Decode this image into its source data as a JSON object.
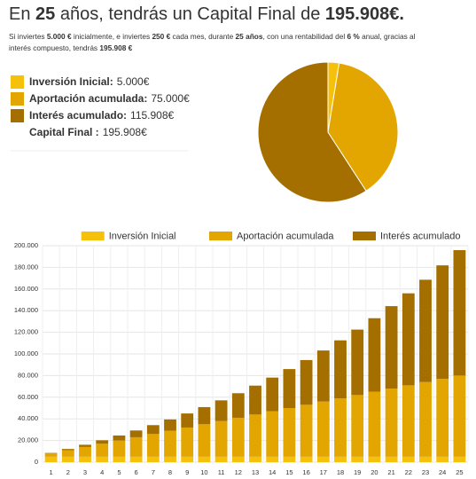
{
  "header": {
    "title_parts": [
      "En ",
      "25",
      " años, tendrás un Capital Final de ",
      "195.908€."
    ],
    "line1_parts": [
      "Si inviertes ",
      "5.000 €",
      " inicialmente, e inviertes ",
      "250 €",
      " cada mes, durante ",
      "25 años",
      ", con una rentabilidad del ",
      "6 %",
      " anual, gracias al"
    ],
    "line2_parts": [
      "interés compuesto, tendrás ",
      "195.908 €"
    ]
  },
  "summary": [
    {
      "label": "Inversión Inicial:",
      "value": "5.000€",
      "color": "#f5c10a"
    },
    {
      "label": "Aportación acumulada:",
      "value": "75.000€",
      "color": "#e3a600"
    },
    {
      "label": "Interés acumulado:",
      "value": "115.908€",
      "color": "#a56f00"
    },
    {
      "label": "Capital Final :",
      "value": "195.908€"
    }
  ],
  "chart_data": [
    {
      "type": "pie",
      "categories": [
        "Inversión Inicial",
        "Aportación acumulada",
        "Interés acumulado"
      ],
      "values": [
        5000,
        75000,
        115908
      ],
      "colors": [
        "#f5c10a",
        "#e3a600",
        "#a56f00"
      ]
    },
    {
      "type": "bar",
      "stacked": true,
      "legend": "top",
      "grid": true,
      "categories": [
        1,
        2,
        3,
        4,
        5,
        6,
        7,
        8,
        9,
        10,
        11,
        12,
        13,
        14,
        15,
        16,
        17,
        18,
        19,
        20,
        21,
        22,
        23,
        24,
        25
      ],
      "series": [
        {
          "name": "Inversión Inicial",
          "color": "#f5c10a",
          "values": [
            5000,
            5000,
            5000,
            5000,
            5000,
            5000,
            5000,
            5000,
            5000,
            5000,
            5000,
            5000,
            5000,
            5000,
            5000,
            5000,
            5000,
            5000,
            5000,
            5000,
            5000,
            5000,
            5000,
            5000,
            5000
          ]
        },
        {
          "name": "Aportación acumulada",
          "color": "#e3a600",
          "values": [
            3000,
            6000,
            9000,
            12000,
            15000,
            18000,
            21000,
            24000,
            27000,
            30000,
            33000,
            36000,
            39000,
            42000,
            45000,
            48000,
            51000,
            54000,
            57000,
            60000,
            63000,
            66000,
            69000,
            72000,
            75000
          ]
        },
        {
          "name": "Interés acumulado",
          "color": "#a56f00",
          "values": [
            480,
            1169,
            2079,
            3224,
            4617,
            6274,
            8211,
            10443,
            12990,
            15869,
            19101,
            22707,
            26710,
            31132,
            36000,
            41340,
            47181,
            53552,
            60485,
            68014,
            76175,
            85005,
            94546,
            104838,
            115908
          ]
        }
      ],
      "ylim": [
        0,
        200000
      ],
      "yticks": [
        0,
        {
          "value": 20000,
          "label": "20.000"
        },
        {
          "value": 40000,
          "label": "40.000"
        },
        {
          "value": 60000,
          "label": "60.000"
        },
        {
          "value": 80000,
          "label": "80.000"
        },
        {
          "value": 100000,
          "label": "100.000"
        },
        {
          "value": 120000,
          "label": "120.000"
        },
        {
          "value": 140000,
          "label": "140.000"
        },
        {
          "value": 160000,
          "label": "160.000"
        },
        {
          "value": 180000,
          "label": "180.000"
        },
        {
          "value": 200000,
          "label": "200.000"
        }
      ]
    }
  ]
}
